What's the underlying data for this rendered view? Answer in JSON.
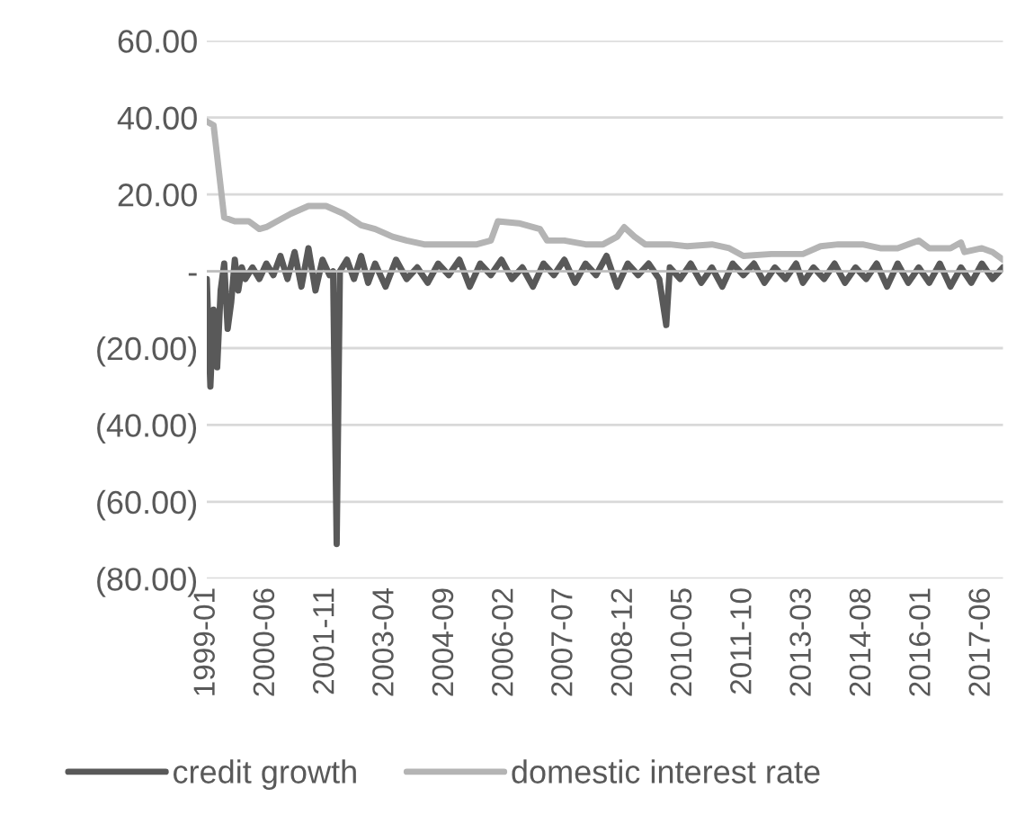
{
  "chart_data": {
    "type": "line",
    "xlim": [
      "1999-01",
      "2017-12"
    ],
    "xticks": [
      "1999-01",
      "2000-06",
      "2001-11",
      "2003-04",
      "2004-09",
      "2006-02",
      "2007-07",
      "2008-12",
      "2010-05",
      "2011-10",
      "2013-03",
      "2014-08",
      "2016-01",
      "2017-06"
    ],
    "ylim": [
      -80,
      60
    ],
    "yticks": [
      {
        "value": -80,
        "label": "(80.00)"
      },
      {
        "value": -60,
        "label": "(60.00)"
      },
      {
        "value": -40,
        "label": "(40.00)"
      },
      {
        "value": -20,
        "label": "(20.00)"
      },
      {
        "value": 0,
        "label": "-"
      },
      {
        "value": 20,
        "label": "20.00"
      },
      {
        "value": 40,
        "label": "40.00"
      },
      {
        "value": 60,
        "label": "60.00"
      }
    ],
    "grid": "y",
    "legend": "bottom",
    "marker": "none",
    "line_style": "solid",
    "series": [
      {
        "name": "credit growth",
        "color": "#595959",
        "x": [
          "1999-01",
          "1999-02",
          "1999-03",
          "1999-04",
          "1999-05",
          "1999-06",
          "1999-07",
          "1999-08",
          "1999-09",
          "1999-10",
          "1999-11",
          "1999-12",
          "2000-02",
          "2000-04",
          "2000-06",
          "2000-08",
          "2000-10",
          "2000-12",
          "2001-02",
          "2001-04",
          "2001-06",
          "2001-08",
          "2001-10",
          "2001-12",
          "2002-01",
          "2002-02",
          "2002-03",
          "2002-05",
          "2002-07",
          "2002-09",
          "2002-11",
          "2003-01",
          "2003-04",
          "2003-07",
          "2003-10",
          "2004-01",
          "2004-04",
          "2004-07",
          "2004-10",
          "2005-01",
          "2005-04",
          "2005-07",
          "2005-10",
          "2006-01",
          "2006-04",
          "2006-07",
          "2006-10",
          "2007-01",
          "2007-04",
          "2007-07",
          "2007-10",
          "2008-01",
          "2008-04",
          "2008-07",
          "2008-10",
          "2009-01",
          "2009-04",
          "2009-07",
          "2009-10",
          "2009-12",
          "2010-01",
          "2010-04",
          "2010-07",
          "2010-10",
          "2011-01",
          "2011-04",
          "2011-07",
          "2011-10",
          "2012-01",
          "2012-04",
          "2012-07",
          "2012-10",
          "2013-01",
          "2013-03",
          "2013-06",
          "2013-09",
          "2013-12",
          "2014-03",
          "2014-06",
          "2014-09",
          "2014-12",
          "2015-03",
          "2015-06",
          "2015-09",
          "2015-12",
          "2016-03",
          "2016-06",
          "2016-09",
          "2016-12",
          "2017-03",
          "2017-06",
          "2017-09",
          "2017-12"
        ],
        "values": [
          -2,
          -30,
          -10,
          -25,
          -5,
          2,
          -15,
          -8,
          3,
          -5,
          1,
          -2,
          1,
          -2,
          2,
          -1,
          4,
          -2,
          5,
          -4,
          6,
          -5,
          3,
          -1,
          0,
          -71,
          0,
          3,
          -2,
          4,
          -3,
          2,
          -4,
          3,
          -2,
          1,
          -3,
          2,
          -1,
          3,
          -4,
          2,
          -1,
          3,
          -2,
          1,
          -4,
          2,
          -1,
          3,
          -3,
          2,
          -1,
          4,
          -4,
          2,
          -1,
          2,
          -2,
          -14,
          1,
          -2,
          2,
          -3,
          1,
          -4,
          2,
          -1,
          2,
          -3,
          1,
          -2,
          2,
          -3,
          1,
          -2,
          2,
          -3,
          1,
          -2,
          2,
          -4,
          2,
          -3,
          1,
          -3,
          2,
          -4,
          1,
          -3,
          2,
          -2,
          1
        ]
      },
      {
        "name": "domestic interest rate",
        "color": "#b4b4b4",
        "x": [
          "1999-01",
          "1999-03",
          "1999-06",
          "1999-09",
          "2000-01",
          "2000-04",
          "2000-06",
          "2000-09",
          "2001-01",
          "2001-06",
          "2001-11",
          "2002-04",
          "2002-09",
          "2003-01",
          "2003-06",
          "2003-10",
          "2004-03",
          "2004-09",
          "2005-06",
          "2005-10",
          "2005-12",
          "2006-06",
          "2006-12",
          "2007-02",
          "2007-07",
          "2008-01",
          "2008-06",
          "2008-10",
          "2008-12",
          "2009-03",
          "2009-06",
          "2010-01",
          "2010-06",
          "2011-01",
          "2011-06",
          "2011-10",
          "2012-06",
          "2013-03",
          "2013-08",
          "2014-01",
          "2014-08",
          "2015-01",
          "2015-06",
          "2015-12",
          "2016-03",
          "2016-09",
          "2016-12",
          "2017-01",
          "2017-06",
          "2017-09",
          "2017-12"
        ],
        "values": [
          39,
          38,
          14,
          13,
          13,
          11,
          11.5,
          13,
          15,
          17,
          17,
          15,
          12,
          11,
          9,
          8,
          7,
          7,
          7,
          8,
          13,
          12.5,
          11,
          8,
          8,
          7,
          7,
          9,
          11.5,
          9,
          7,
          7,
          6.5,
          7,
          6,
          4,
          4.5,
          4.5,
          6.5,
          7,
          7,
          6,
          6,
          8,
          6,
          6,
          7.5,
          5,
          6,
          5,
          3
        ]
      }
    ]
  }
}
